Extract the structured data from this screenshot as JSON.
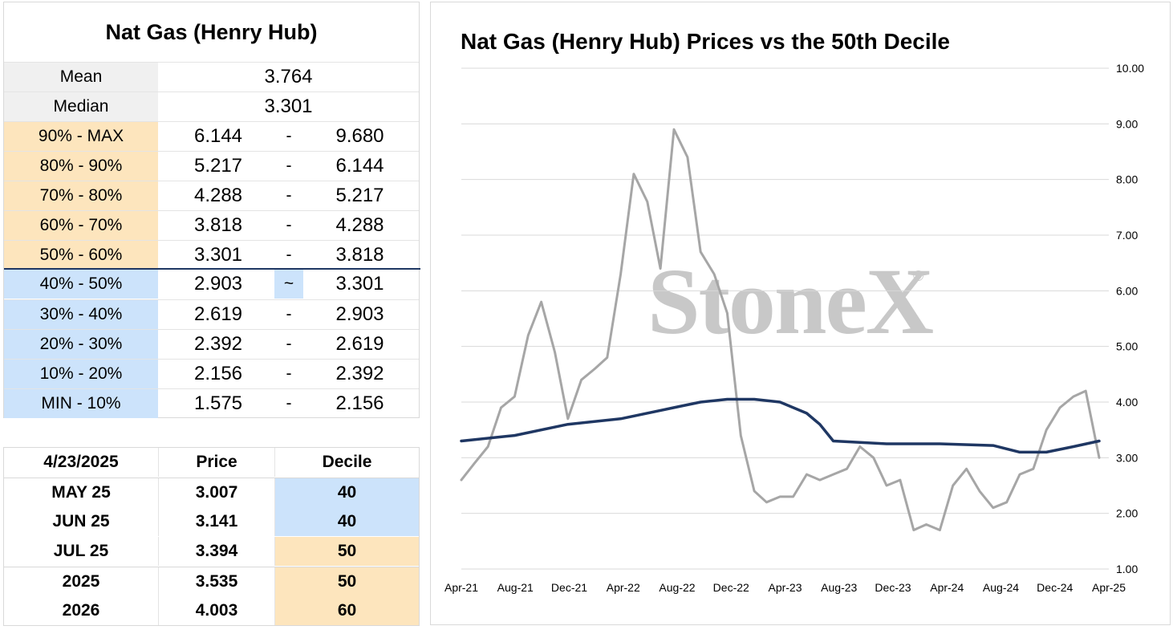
{
  "stats": {
    "title": "Nat Gas (Henry Hub)",
    "mean_label": "Mean",
    "mean_value": "3.764",
    "median_label": "Median",
    "median_value": "3.301",
    "deciles": [
      {
        "label": "90% - MAX",
        "low": "6.144",
        "sep": "-",
        "high": "9.680",
        "zone": "upper"
      },
      {
        "label": "80% - 90%",
        "low": "5.217",
        "sep": "-",
        "high": "6.144",
        "zone": "upper"
      },
      {
        "label": "70% - 80%",
        "low": "4.288",
        "sep": "-",
        "high": "5.217",
        "zone": "upper"
      },
      {
        "label": "60% - 70%",
        "low": "3.818",
        "sep": "-",
        "high": "4.288",
        "zone": "upper"
      },
      {
        "label": "50% - 60%",
        "low": "3.301",
        "sep": "-",
        "high": "3.818",
        "zone": "upper"
      },
      {
        "label": "40% - 50%",
        "low": "2.903",
        "sep": "~",
        "high": "3.301",
        "zone": "lower"
      },
      {
        "label": "30% - 40%",
        "low": "2.619",
        "sep": "-",
        "high": "2.903",
        "zone": "lower"
      },
      {
        "label": "20% - 30%",
        "low": "2.392",
        "sep": "-",
        "high": "2.619",
        "zone": "lower"
      },
      {
        "label": "10% - 20%",
        "low": "2.156",
        "sep": "-",
        "high": "2.392",
        "zone": "lower"
      },
      {
        "label": "MIN - 10%",
        "low": "1.575",
        "sep": "-",
        "high": "2.156",
        "zone": "lower"
      }
    ]
  },
  "prices": {
    "headers": {
      "date": "4/23/2025",
      "price": "Price",
      "decile": "Decile"
    },
    "rows": [
      {
        "contract": "MAY 25",
        "price": "3.007",
        "decile": "40",
        "zone": "lower"
      },
      {
        "contract": "JUN 25",
        "price": "3.141",
        "decile": "40",
        "zone": "lower"
      },
      {
        "contract": "JUL 25",
        "price": "3.394",
        "decile": "50",
        "zone": "upper"
      },
      {
        "contract": "2025",
        "price": "3.535",
        "decile": "50",
        "zone": "upper"
      },
      {
        "contract": "2026",
        "price": "4.003",
        "decile": "60",
        "zone": "upper"
      }
    ]
  },
  "colors": {
    "upper_zone": "#fde5bd",
    "lower_zone": "#cce3fb",
    "price_line": "#a6a6a6",
    "decile_line": "#1f3763",
    "grid": "#d9d9d9"
  },
  "watermark": {
    "text": "StoneX",
    "mark": "®"
  },
  "chart_data": {
    "type": "line",
    "title": "Nat Gas (Henry Hub) Prices vs the 50th Decile",
    "ylim": [
      1,
      10
    ],
    "yticks": [
      "1.00",
      "2.00",
      "3.00",
      "4.00",
      "5.00",
      "6.00",
      "7.00",
      "8.00",
      "9.00",
      "10.00"
    ],
    "xticks": [
      "Apr-21",
      "Aug-21",
      "Dec-21",
      "Apr-22",
      "Aug-22",
      "Dec-22",
      "Apr-23",
      "Aug-23",
      "Dec-23",
      "Apr-24",
      "Aug-24",
      "Dec-24",
      "Apr-25"
    ],
    "grid": "horizontal",
    "y_axis_position": "right",
    "series": [
      {
        "role": "price",
        "x": [
          "2021-04",
          "2021-05",
          "2021-06",
          "2021-07",
          "2021-08",
          "2021-09",
          "2021-10",
          "2021-11",
          "2021-12",
          "2022-01",
          "2022-02",
          "2022-03",
          "2022-04",
          "2022-05",
          "2022-06",
          "2022-07",
          "2022-08",
          "2022-09",
          "2022-10",
          "2022-11",
          "2022-12",
          "2023-01",
          "2023-02",
          "2023-03",
          "2023-04",
          "2023-05",
          "2023-06",
          "2023-07",
          "2023-08",
          "2023-09",
          "2023-10",
          "2023-11",
          "2023-12",
          "2024-01",
          "2024-02",
          "2024-03",
          "2024-04",
          "2024-05",
          "2024-06",
          "2024-07",
          "2024-08",
          "2024-09",
          "2024-10",
          "2024-11",
          "2024-12",
          "2025-01",
          "2025-02",
          "2025-03",
          "2025-04"
        ],
        "values": [
          2.6,
          2.9,
          3.2,
          3.9,
          4.1,
          5.2,
          5.8,
          4.9,
          3.7,
          4.4,
          4.6,
          4.8,
          6.3,
          8.1,
          7.6,
          6.4,
          8.9,
          8.4,
          6.7,
          6.3,
          5.6,
          3.4,
          2.4,
          2.2,
          2.3,
          2.3,
          2.7,
          2.6,
          2.7,
          2.8,
          3.2,
          3.0,
          2.5,
          2.6,
          1.7,
          1.8,
          1.7,
          2.5,
          2.8,
          2.4,
          2.1,
          2.2,
          2.7,
          2.8,
          3.5,
          3.9,
          4.1,
          4.2,
          3.0
        ]
      },
      {
        "role": "50th decile",
        "x": [
          "2021-04",
          "2021-08",
          "2021-12",
          "2022-04",
          "2022-08",
          "2022-10",
          "2022-12",
          "2023-02",
          "2023-04",
          "2023-06",
          "2023-07",
          "2023-08",
          "2023-12",
          "2024-04",
          "2024-08",
          "2024-10",
          "2024-12",
          "2025-02",
          "2025-04"
        ],
        "values": [
          3.3,
          3.4,
          3.6,
          3.7,
          3.9,
          4.0,
          4.05,
          4.05,
          4.0,
          3.8,
          3.6,
          3.3,
          3.25,
          3.25,
          3.22,
          3.1,
          3.1,
          3.2,
          3.3
        ]
      }
    ]
  }
}
